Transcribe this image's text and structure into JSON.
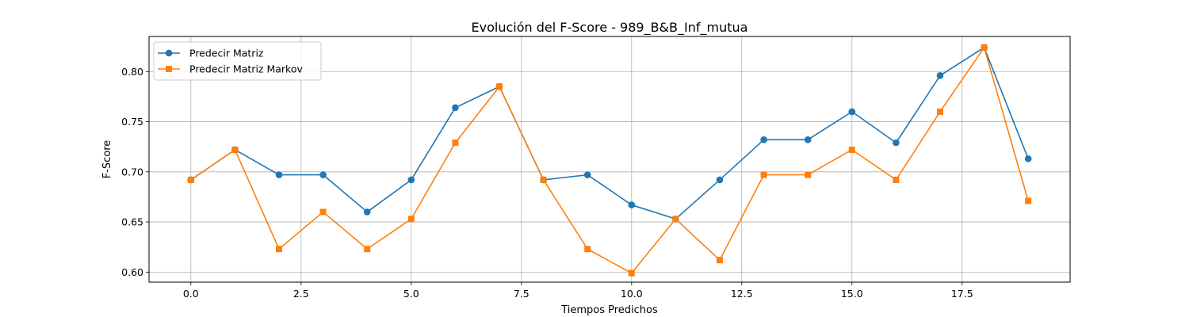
{
  "chart_data": {
    "type": "line",
    "title": "Evolución del F-Score - 989_B&B_Inf_mutua",
    "xlabel": "Tiempos Predichos",
    "ylabel": "F-Score",
    "xlim": [
      -0.95,
      19.95
    ],
    "ylim": [
      0.59,
      0.835
    ],
    "xticks": [
      0.0,
      2.5,
      5.0,
      7.5,
      10.0,
      12.5,
      15.0,
      17.5
    ],
    "xtick_labels": [
      "0.0",
      "2.5",
      "5.0",
      "7.5",
      "10.0",
      "12.5",
      "15.0",
      "17.5"
    ],
    "yticks": [
      0.6,
      0.65,
      0.7,
      0.75,
      0.8
    ],
    "ytick_labels": [
      "0.60",
      "0.65",
      "0.70",
      "0.75",
      "0.80"
    ],
    "grid": true,
    "legend_position": "top-left",
    "x": [
      0,
      1,
      2,
      3,
      4,
      5,
      6,
      7,
      8,
      9,
      10,
      11,
      12,
      13,
      14,
      15,
      16,
      17,
      18,
      19
    ],
    "series": [
      {
        "name": "Predecir Matriz",
        "color": "#1f77b4",
        "marker": "circle",
        "values": [
          0.692,
          0.722,
          0.697,
          0.697,
          0.66,
          0.692,
          0.764,
          0.785,
          0.692,
          0.697,
          0.667,
          0.653,
          0.692,
          0.732,
          0.732,
          0.76,
          0.729,
          0.796,
          0.824,
          0.713
        ]
      },
      {
        "name": "Predecir Matriz Markov",
        "color": "#ff7f0e",
        "marker": "square",
        "values": [
          0.692,
          0.722,
          0.623,
          0.66,
          0.623,
          0.653,
          0.729,
          0.785,
          0.692,
          0.623,
          0.599,
          0.653,
          0.612,
          0.697,
          0.697,
          0.722,
          0.692,
          0.76,
          0.824,
          0.671
        ]
      }
    ]
  }
}
